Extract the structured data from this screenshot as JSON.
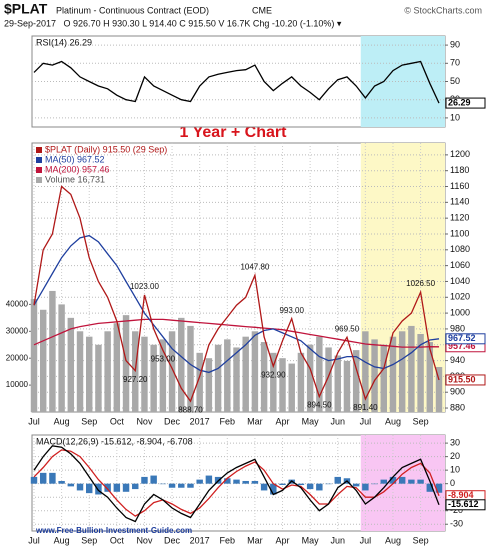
{
  "header": {
    "symbol": "$PLAT",
    "name": "Platinum - Continuous Contract (EOD)",
    "exchange": "CME",
    "source": "© StockCharts.com",
    "quote": "29-Sep-2017   O 926.70 H 930.30 L 914.40 C 915.50 V 16.7K Chg -10.20 (-1.10%) ▾"
  },
  "annotation": "1 Year + Chart",
  "footer": "www.Free-Bullion-Investment-Guide.com",
  "chart_data": [
    {
      "type": "line",
      "title": "RSI(14) 26.29",
      "ylim": [
        0,
        100
      ],
      "yticks": [
        10,
        30,
        50,
        70,
        90
      ],
      "grid": true,
      "series": [
        {
          "type": "line",
          "color": "#000000",
          "values": [
            60,
            70,
            68,
            72,
            65,
            55,
            50,
            45,
            42,
            35,
            30,
            28,
            55,
            45,
            40,
            35,
            30,
            28,
            45,
            55,
            58,
            60,
            62,
            63,
            68,
            50,
            40,
            48,
            55,
            45,
            38,
            30,
            42,
            52,
            55,
            45,
            32,
            45,
            50,
            62,
            68,
            70,
            72,
            48,
            26.29
          ],
          "value_labels": [
            null,
            null,
            null,
            null,
            null,
            null,
            null,
            null,
            null,
            null,
            null,
            null,
            null,
            null,
            null,
            null,
            null,
            null,
            null,
            null,
            null,
            null,
            null,
            null,
            null,
            null,
            null,
            null,
            null,
            null,
            null,
            null,
            null,
            null,
            null,
            null,
            null,
            null,
            null,
            null,
            null,
            null,
            null,
            null,
            "26.29"
          ]
        }
      ]
    },
    {
      "type": "line",
      "categories": [
        "Jul",
        null,
        null,
        "Aug",
        null,
        null,
        "Sep",
        null,
        null,
        "Oct",
        null,
        null,
        "Nov",
        null,
        null,
        "Dec",
        null,
        null,
        "2017",
        null,
        null,
        "Feb",
        null,
        null,
        "Mar",
        null,
        null,
        "Apr",
        null,
        null,
        "May",
        null,
        null,
        "Jun",
        null,
        null,
        "Jul",
        null,
        null,
        "Aug",
        null,
        null,
        "Sep",
        null,
        null
      ],
      "ylim": [
        875,
        1215
      ],
      "yticks": [
        880,
        900,
        920,
        940,
        960,
        980,
        1000,
        1020,
        1040,
        1060,
        1080,
        1100,
        1120,
        1140,
        1160,
        1180,
        1200
      ],
      "y2lim": [
        0,
        100000
      ],
      "y2ticks": [
        10000,
        20000,
        30000,
        40000
      ],
      "grid": true,
      "series": [
        {
          "name": "Volume 16,731",
          "type": "bar",
          "axis": "y2",
          "color": "#a9a9a9",
          "values": [
            42000,
            38000,
            45000,
            40000,
            35000,
            30000,
            28000,
            25000,
            30000,
            33000,
            36000,
            30000,
            28000,
            25000,
            27000,
            30000,
            35000,
            32000,
            22000,
            20000,
            25000,
            27000,
            24000,
            28000,
            30000,
            26000,
            22000,
            20000,
            18000,
            22000,
            25000,
            28000,
            24000,
            21000,
            19000,
            23000,
            30000,
            27000,
            25000,
            28000,
            30000,
            32000,
            29000,
            26000,
            16731
          ]
        },
        {
          "name": "MA(200) 957.46",
          "type": "line",
          "color": "#c0143c",
          "values": [
            960,
            965,
            970,
            975,
            980,
            983,
            985,
            987,
            988,
            989,
            990,
            991,
            992,
            992,
            992,
            991,
            990,
            989,
            988,
            987,
            986,
            985,
            984,
            983,
            982,
            981,
            980,
            979,
            977,
            975,
            973,
            971,
            969,
            967,
            965,
            963,
            961,
            960,
            959,
            958,
            957,
            957,
            957,
            957.5,
            957.46
          ],
          "value_labels": [
            null,
            null,
            null,
            null,
            null,
            null,
            null,
            null,
            null,
            null,
            null,
            null,
            null,
            null,
            null,
            null,
            null,
            null,
            null,
            null,
            null,
            null,
            null,
            null,
            null,
            null,
            null,
            null,
            null,
            null,
            null,
            null,
            null,
            null,
            null,
            null,
            null,
            null,
            null,
            null,
            null,
            null,
            null,
            null,
            "957.46"
          ]
        },
        {
          "name": "MA(50) 967.52",
          "type": "line",
          "color": "#1f3f9f",
          "values": [
            1010,
            1030,
            1050,
            1070,
            1085,
            1095,
            1098,
            1090,
            1075,
            1060,
            1040,
            1020,
            1000,
            985,
            970,
            955,
            945,
            935,
            928,
            925,
            930,
            940,
            950,
            960,
            972,
            978,
            980,
            975,
            970,
            965,
            955,
            945,
            940,
            942,
            945,
            945,
            938,
            932,
            930,
            935,
            942,
            950,
            960,
            966,
            967.52
          ],
          "value_labels": [
            null,
            null,
            null,
            null,
            null,
            null,
            null,
            null,
            null,
            null,
            null,
            null,
            null,
            null,
            null,
            null,
            null,
            null,
            null,
            null,
            null,
            null,
            null,
            null,
            null,
            null,
            null,
            null,
            null,
            null,
            null,
            null,
            null,
            null,
            null,
            null,
            null,
            null,
            null,
            null,
            null,
            null,
            null,
            null,
            "967.52"
          ]
        },
        {
          "name": "$PLAT (Daily) 915.50 (29 Sep)",
          "type": "line",
          "color": "#b01818",
          "values": [
            1010,
            1080,
            1100,
            1160,
            1150,
            1120,
            1070,
            1040,
            1020,
            990,
            940,
            927.2,
            1023,
            980,
            953,
            930,
            905,
            888.7,
            920,
            960,
            980,
            995,
            1010,
            1020,
            1047.8,
            970,
            932.9,
            965,
            993,
            950,
            930,
            894.5,
            920,
            950,
            969.5,
            930,
            891.4,
            915,
            930,
            975,
            990,
            1000,
            1026.5,
            955,
            915.5
          ],
          "value_labels": [
            null,
            null,
            null,
            null,
            null,
            null,
            null,
            null,
            null,
            null,
            null,
            "927.20",
            "1023.00",
            null,
            "953.00",
            null,
            null,
            "888.70",
            null,
            null,
            null,
            null,
            null,
            null,
            "1047.80",
            null,
            "932.90",
            null,
            "993.00",
            null,
            null,
            "894.50",
            null,
            null,
            "969.50",
            null,
            "891.40",
            null,
            null,
            null,
            null,
            null,
            "1026.50",
            null,
            "915.50"
          ]
        }
      ]
    },
    {
      "type": "line",
      "title": "MACD(12,26,9) -15.612, -8.904, -6.708",
      "categories": [
        "Jul",
        null,
        null,
        "Aug",
        null,
        null,
        "Sep",
        null,
        null,
        "Oct",
        null,
        null,
        "Nov",
        null,
        null,
        "Dec",
        null,
        null,
        "2017",
        null,
        null,
        "Feb",
        null,
        null,
        "Mar",
        null,
        null,
        "Apr",
        null,
        null,
        "May",
        null,
        null,
        "Jun",
        null,
        null,
        "Jul",
        null,
        null,
        "Aug",
        null,
        null,
        "Sep",
        null,
        null
      ],
      "ylim": [
        -35,
        36
      ],
      "yticks": [
        -30,
        -20,
        -10,
        0,
        10,
        20,
        30
      ],
      "grid": true,
      "series": [
        {
          "type": "bar",
          "color": "#3a78b8",
          "values": [
            5,
            8,
            8,
            2,
            -2,
            -5,
            -7,
            -8,
            -6,
            -6,
            -6,
            -4,
            5,
            6,
            0,
            -3,
            -3,
            -3,
            3,
            6,
            5,
            4,
            3,
            2,
            2,
            -5,
            -8,
            -1,
            3,
            -1,
            -4,
            -5,
            0,
            5,
            4,
            -2,
            -5,
            0,
            3,
            5,
            5,
            3,
            3,
            -6,
            -6.708
          ]
        },
        {
          "type": "line",
          "color": "#d02020",
          "values": [
            5,
            12,
            20,
            25,
            24,
            20,
            12,
            3,
            -4,
            -12,
            -19,
            -24,
            -20,
            -14,
            -12,
            -15,
            -19,
            -22,
            -18,
            -11,
            -3,
            4,
            9,
            13,
            16,
            10,
            0,
            -4,
            -1,
            -2,
            -8,
            -15,
            -15,
            -8,
            -2,
            -3,
            -10,
            -10,
            -6,
            0,
            7,
            12,
            15,
            8,
            -8.904
          ],
          "value_labels": [
            null,
            null,
            null,
            null,
            null,
            null,
            null,
            null,
            null,
            null,
            null,
            null,
            null,
            null,
            null,
            null,
            null,
            null,
            null,
            null,
            null,
            null,
            null,
            null,
            null,
            null,
            null,
            null,
            null,
            null,
            null,
            null,
            null,
            null,
            null,
            null,
            null,
            null,
            null,
            null,
            null,
            null,
            null,
            null,
            "-8.904"
          ]
        },
        {
          "type": "line",
          "color": "#000000",
          "values": [
            10,
            20,
            28,
            27,
            22,
            15,
            5,
            -5,
            -10,
            -18,
            -25,
            -28,
            -15,
            -8,
            -12,
            -18,
            -22,
            -25,
            -15,
            -5,
            2,
            8,
            12,
            15,
            18,
            5,
            -8,
            -5,
            2,
            -3,
            -12,
            -20,
            -15,
            -3,
            2,
            -5,
            -15,
            -10,
            -3,
            5,
            12,
            15,
            18,
            2,
            -15.612
          ],
          "value_labels": [
            null,
            null,
            null,
            null,
            null,
            null,
            null,
            null,
            null,
            null,
            null,
            null,
            null,
            null,
            null,
            null,
            null,
            null,
            null,
            null,
            null,
            null,
            null,
            null,
            null,
            null,
            null,
            null,
            null,
            null,
            null,
            null,
            null,
            null,
            null,
            null,
            null,
            null,
            null,
            null,
            null,
            null,
            null,
            null,
            "-15.612"
          ]
        }
      ]
    }
  ]
}
